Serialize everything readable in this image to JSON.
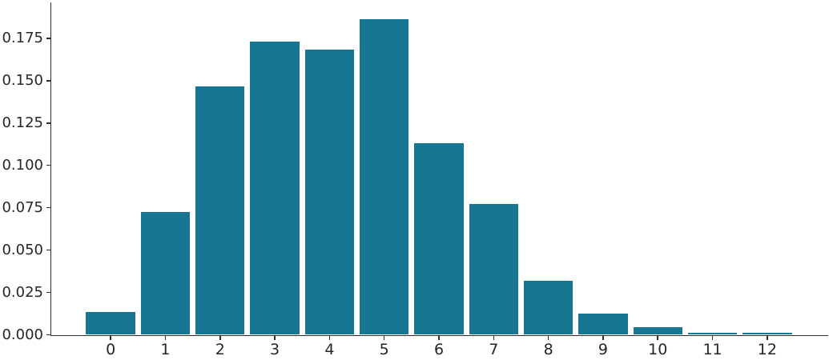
{
  "chart_data": {
    "type": "bar",
    "title": "",
    "xlabel": "",
    "ylabel": "",
    "categories": [
      "0",
      "1",
      "2",
      "3",
      "4",
      "5",
      "6",
      "7",
      "8",
      "9",
      "10",
      "11",
      "12"
    ],
    "values": [
      0.0135,
      0.0725,
      0.1465,
      0.173,
      0.1685,
      0.1865,
      0.113,
      0.077,
      0.032,
      0.0125,
      0.0045,
      0.001,
      0.001
    ],
    "ytick_labels": [
      "0.000",
      "0.025",
      "0.050",
      "0.075",
      "0.100",
      "0.125",
      "0.150",
      "0.175"
    ],
    "ytick_values": [
      0,
      0.025,
      0.05,
      0.075,
      0.1,
      0.125,
      0.15,
      0.175
    ],
    "xlim": [
      -1.1,
      13.1
    ],
    "ylim": [
      0,
      0.1962
    ],
    "bar_width_fraction": 0.9,
    "bar_color": "#177792",
    "axis_color": "#2e2e2e",
    "tick_label_color": "#262626",
    "background_color": "#ffffff",
    "grid": false,
    "legend_position": "none"
  }
}
